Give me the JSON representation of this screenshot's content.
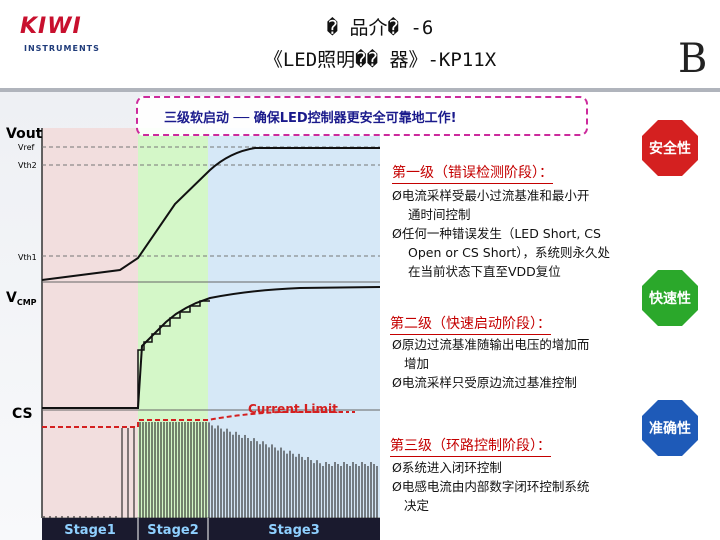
{
  "logo": {
    "brand": "KIWI",
    "sub": "INSTRUMENTS"
  },
  "title": {
    "line1": "� 品介� -6",
    "line2": "《LED照明�� 器》-KP11X"
  },
  "corner_letter": "B",
  "banner": "三级软启动 ── 确保LED控制器更安全可靠地工作!",
  "diagram": {
    "labels": {
      "vout": "Vout",
      "vref": "Vref",
      "vth2": "Vth2",
      "vth1": "Vth1",
      "vcmp": "V",
      "vcmp_sub": "CMP",
      "cs": "CS",
      "current_limit": "Current Limit"
    },
    "stages": [
      "Stage1",
      "Stage2",
      "Stage3"
    ],
    "colors": {
      "stage1": "#f2dede",
      "stage2": "#d4f7c8",
      "stage3": "#d6e8f7",
      "limit": "#d42020",
      "stage_bar": "#1a1a2e"
    }
  },
  "stage_sections": [
    {
      "title": "第一级（错误检测阶段）：",
      "bullets": [
        "Ø电流采样受最小过流基准和最小开",
        "通时间控制",
        "Ø任何一种错误发生（LED Short, CS",
        "Open or CS Short），系统则永久处",
        "在当前状态下直至VDD复位"
      ]
    },
    {
      "title": "第二级（快速启动阶段）：",
      "bullets": [
        "Ø原边过流基准随输出电压的增加而",
        "增加",
        "Ø电流采样只受原边流过基准控制"
      ]
    },
    {
      "title": "第三级（环路控制阶段）：",
      "bullets": [
        "Ø系统进入闭环控制",
        "Ø电感电流由内部数字闭环控制系统",
        "决定"
      ]
    }
  ],
  "tags": [
    {
      "label": "安全性",
      "color": "#d42020"
    },
    {
      "label": "快速性",
      "color": "#2ba82b"
    },
    {
      "label": "准确性",
      "color": "#1e5ab8"
    }
  ]
}
